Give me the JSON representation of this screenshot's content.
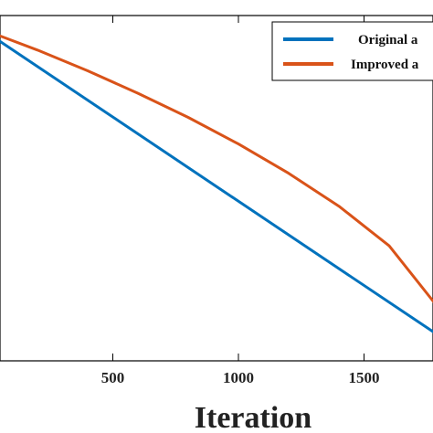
{
  "chart_data": {
    "type": "line",
    "title": "",
    "xlabel": "Iteration",
    "ylabel": "",
    "xlim": [
      0,
      1800
    ],
    "ylim": [
      0,
      1
    ],
    "xticks": [
      500,
      1000,
      1500
    ],
    "xtick_labels": [
      "500",
      "1000",
      "1500"
    ],
    "grid": false,
    "legend_position": "top-right",
    "series": [
      {
        "name": "Original a",
        "color": "#0072BD",
        "x": [
          0,
          1800
        ],
        "y": [
          0.95,
          0.072
        ]
      },
      {
        "name": "Improved a",
        "color": "#D95319",
        "x": [
          0,
          200,
          400,
          600,
          800,
          1000,
          1200,
          1400,
          1600,
          1800
        ],
        "y": [
          0.955,
          0.9,
          0.84,
          0.775,
          0.705,
          0.628,
          0.543,
          0.448,
          0.333,
          0.15
        ]
      }
    ]
  }
}
